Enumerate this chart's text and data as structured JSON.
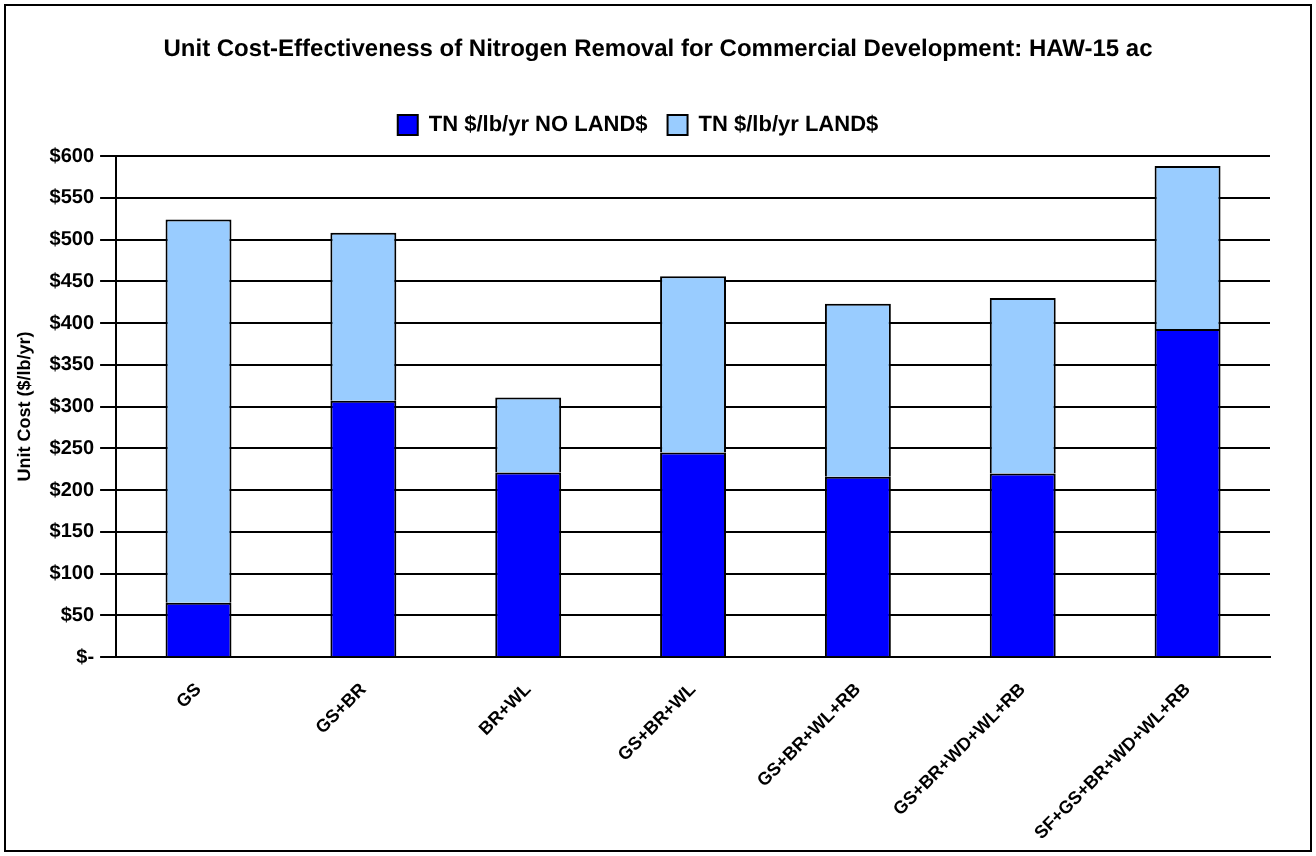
{
  "chart_data": {
    "type": "bar",
    "title": "Unit Cost-Effectiveness of Nitrogen Removal for Commercial Development: HAW-15 ac",
    "ylabel": "Unit Cost ($/lb/yr)",
    "categories": [
      "GS",
      "GS+BR",
      "BR+WL",
      "GS+BR+WL",
      "GS+BR+WL+RB",
      "GS+BR+WD+WL+RB",
      "SF+GS+BR+WD+WL+RB"
    ],
    "series": [
      {
        "name": "TN $/lb/yr NO LAND$",
        "color": "#0000ff",
        "values": [
          65,
          307,
          221,
          245,
          216,
          220,
          393
        ]
      },
      {
        "name": "TN $/lb/yr LAND$",
        "color": "#99ccff",
        "values": [
          459,
          201,
          90,
          211,
          207,
          210,
          195
        ]
      }
    ],
    "stacked": true,
    "ylim": [
      0,
      600
    ],
    "yticks": [
      {
        "value": 0,
        "label": "$-"
      },
      {
        "value": 50,
        "label": "$50"
      },
      {
        "value": 100,
        "label": "$100"
      },
      {
        "value": 150,
        "label": "$150"
      },
      {
        "value": 200,
        "label": "$200"
      },
      {
        "value": 250,
        "label": "$250"
      },
      {
        "value": 300,
        "label": "$300"
      },
      {
        "value": 350,
        "label": "$350"
      },
      {
        "value": 400,
        "label": "$400"
      },
      {
        "value": 450,
        "label": "$450"
      },
      {
        "value": 500,
        "label": "$500"
      },
      {
        "value": 550,
        "label": "$550"
      },
      {
        "value": 600,
        "label": "$600"
      }
    ],
    "grid": "y",
    "legend": "top"
  }
}
